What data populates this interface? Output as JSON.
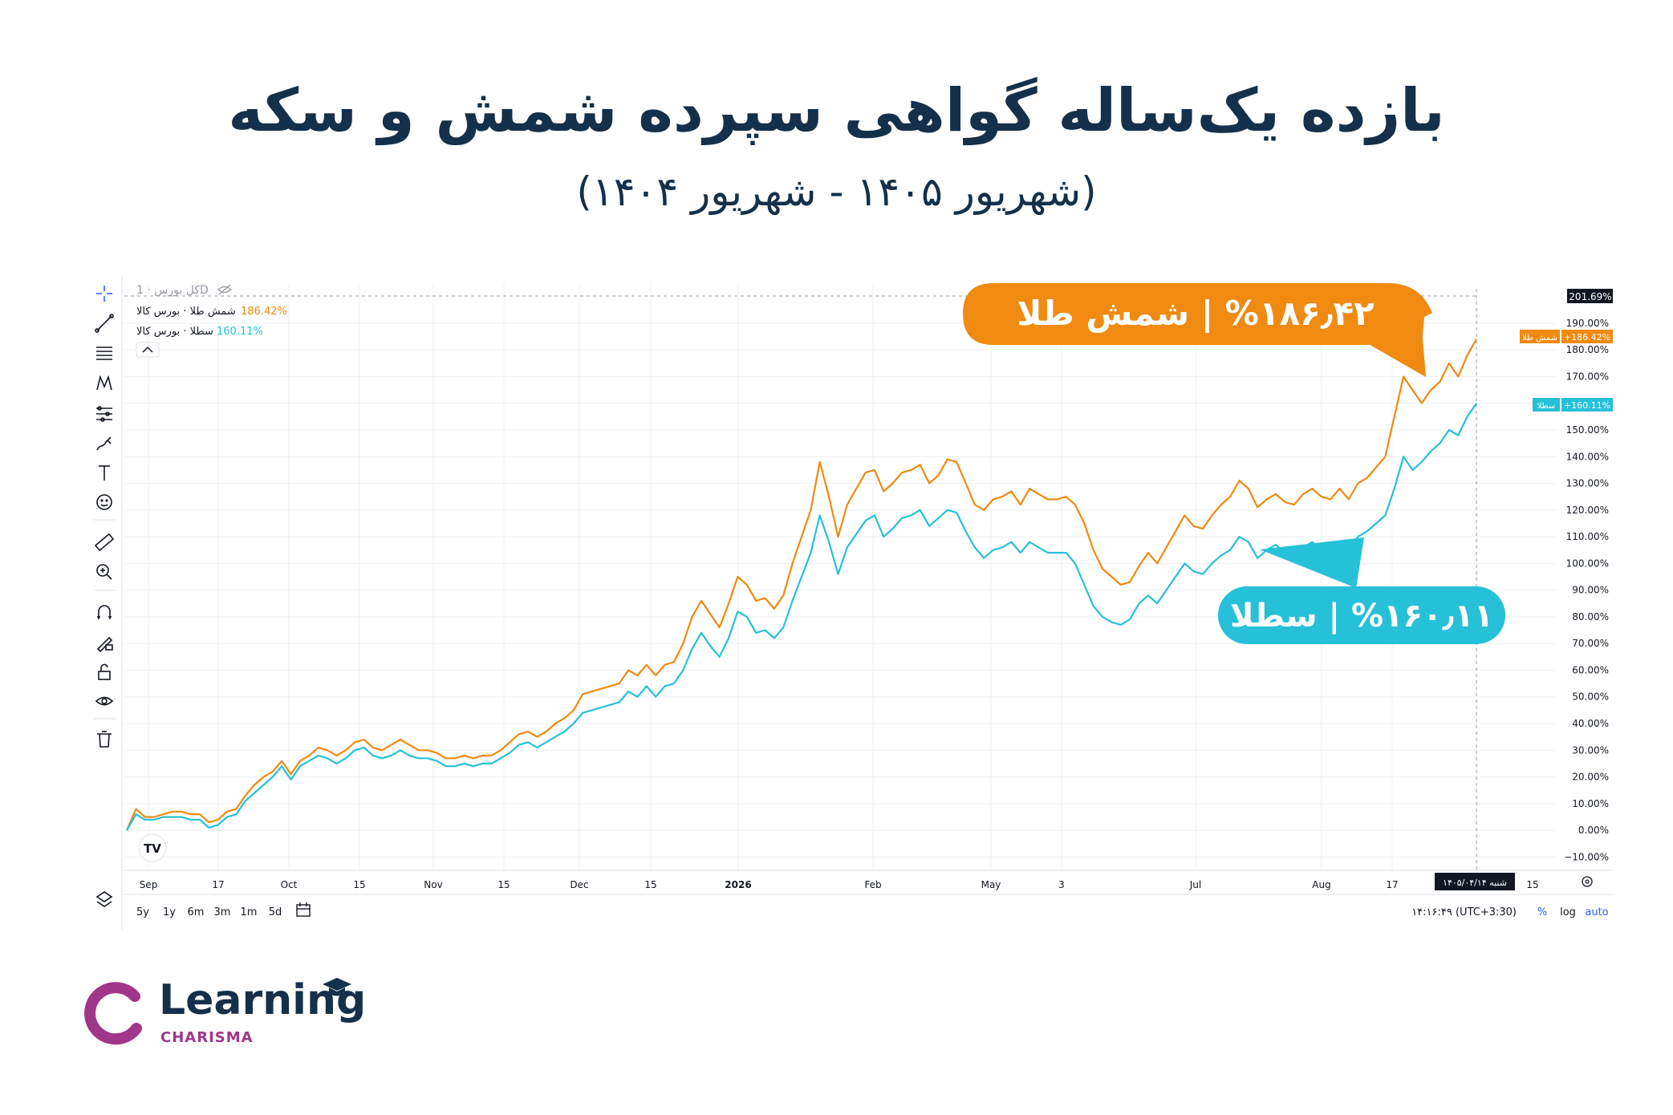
{
  "header": {
    "title": "بازده یک‌ساله گواهی سپرده شمش و سکه",
    "subtitle": "(شهریور ۱۴۰۵ - شهریور ۱۴۰۴)"
  },
  "legend": {
    "symbol_text": "کل بورس · 1D",
    "rows": [
      {
        "label": "شمش طلا · بورس کالا",
        "value": "186.42%"
      },
      {
        "label": "سطلا · بورس کالا",
        "value": "160.11%"
      }
    ]
  },
  "callouts": {
    "gold": "%۱۸۶٫۴۲ | شمش طلا",
    "setala": "%۱۶۰٫۱۱ | سطلا"
  },
  "price_labels": {
    "crosshair": "201.69%",
    "gold_name": "شمش طلا",
    "gold_value": "+186.42%",
    "setala_name": "سطلا",
    "setala_value": "+160.11%"
  },
  "time_axis": {
    "ticks": [
      "Sep",
      "17",
      "Oct",
      "15",
      "Nov",
      "15",
      "Dec",
      "15",
      "2026",
      "Feb",
      "May",
      "3",
      "Jul",
      "Aug",
      "17",
      "15"
    ],
    "crosshair_date": "شنبه ۱۴۰۵/۰۴/۱۴"
  },
  "bottom_bar": {
    "ranges": [
      "5y",
      "1y",
      "6m",
      "3m",
      "1m",
      "5d"
    ],
    "clock": "۱۴:۱۶:۴۹ (UTC+3:30)",
    "options": [
      "%",
      "log",
      "auto"
    ]
  },
  "tradingview_logo": "TV",
  "brand": {
    "word": "Learning",
    "sub": "CHARISMA"
  },
  "colors": {
    "gold": "#f08a10",
    "setala": "#26c0d8",
    "title": "#14304a",
    "grid": "#eef1f5",
    "brand_purple": "#a0368a"
  },
  "chart_data": {
    "type": "line",
    "ylabel": "",
    "ylim": [
      -15,
      205
    ],
    "y_ticks": [
      "190.00%",
      "180.00%",
      "170.00%",
      "160.00%",
      "150.00%",
      "140.00%",
      "130.00%",
      "120.00%",
      "110.00%",
      "100.00%",
      "90.00%",
      "80.00%",
      "70.00%",
      "60.00%",
      "50.00%",
      "40.00%",
      "30.00%",
      "20.00%",
      "10.00%",
      "0.00%",
      "−10.00%"
    ],
    "y_tick_values": [
      190,
      180,
      170,
      160,
      150,
      140,
      130,
      120,
      110,
      100,
      90,
      80,
      70,
      60,
      50,
      40,
      30,
      20,
      10,
      0,
      -10
    ],
    "series": [
      {
        "name": "شمش طلا",
        "color": "#f08a10",
        "values": [
          0,
          8,
          5,
          5,
          6,
          7,
          7,
          6,
          6,
          3,
          4,
          7,
          8,
          13,
          17,
          20,
          22,
          26,
          21,
          26,
          28,
          31,
          30,
          28,
          30,
          33,
          34,
          31,
          30,
          32,
          34,
          32,
          30,
          30,
          29,
          27,
          27,
          28,
          27,
          28,
          28,
          30,
          33,
          36,
          37,
          35,
          37,
          40,
          42,
          45,
          51,
          52,
          53,
          54,
          55,
          60,
          58,
          62,
          58,
          62,
          63,
          70,
          80,
          86,
          81,
          76,
          85,
          95,
          92,
          86,
          87,
          83,
          88,
          100,
          110,
          120,
          138,
          125,
          110,
          122,
          128,
          134,
          135,
          127,
          130,
          134,
          135,
          137,
          130,
          133,
          139,
          138,
          130,
          122,
          120,
          124,
          125,
          127,
          122,
          128,
          126,
          124,
          124,
          125,
          122,
          115,
          105,
          98,
          95,
          92,
          93,
          99,
          104,
          100,
          106,
          112,
          118,
          114,
          113,
          118,
          122,
          125,
          131,
          128,
          121,
          124,
          126,
          123,
          122,
          126,
          128,
          125,
          124,
          128,
          124,
          130,
          132,
          136,
          140,
          155,
          170,
          165,
          160,
          165,
          168,
          175,
          170,
          178,
          184
        ]
      },
      {
        "name": "سطلا",
        "color": "#26c0d8",
        "values": [
          0,
          6,
          4,
          4,
          5,
          5,
          5,
          4,
          4,
          1,
          2,
          5,
          6,
          11,
          14,
          17,
          20,
          24,
          19,
          24,
          26,
          28,
          27,
          25,
          27,
          30,
          31,
          28,
          27,
          28,
          30,
          28,
          27,
          27,
          26,
          24,
          24,
          25,
          24,
          25,
          25,
          27,
          29,
          32,
          33,
          31,
          33,
          35,
          37,
          40,
          44,
          45,
          46,
          47,
          48,
          52,
          50,
          54,
          50,
          54,
          55,
          60,
          68,
          74,
          69,
          65,
          72,
          82,
          80,
          74,
          75,
          72,
          76,
          86,
          95,
          104,
          118,
          108,
          96,
          106,
          111,
          116,
          118,
          110,
          113,
          117,
          118,
          120,
          114,
          117,
          120,
          119,
          112,
          106,
          102,
          105,
          106,
          108,
          104,
          108,
          106,
          104,
          104,
          104,
          100,
          92,
          84,
          80,
          78,
          77,
          79,
          85,
          88,
          85,
          90,
          95,
          100,
          97,
          96,
          100,
          103,
          105,
          110,
          108,
          102,
          105,
          107,
          104,
          103,
          106,
          108,
          105,
          104,
          107,
          105,
          110,
          112,
          115,
          118,
          128,
          140,
          135,
          138,
          142,
          145,
          150,
          148,
          155,
          160
        ]
      }
    ]
  }
}
